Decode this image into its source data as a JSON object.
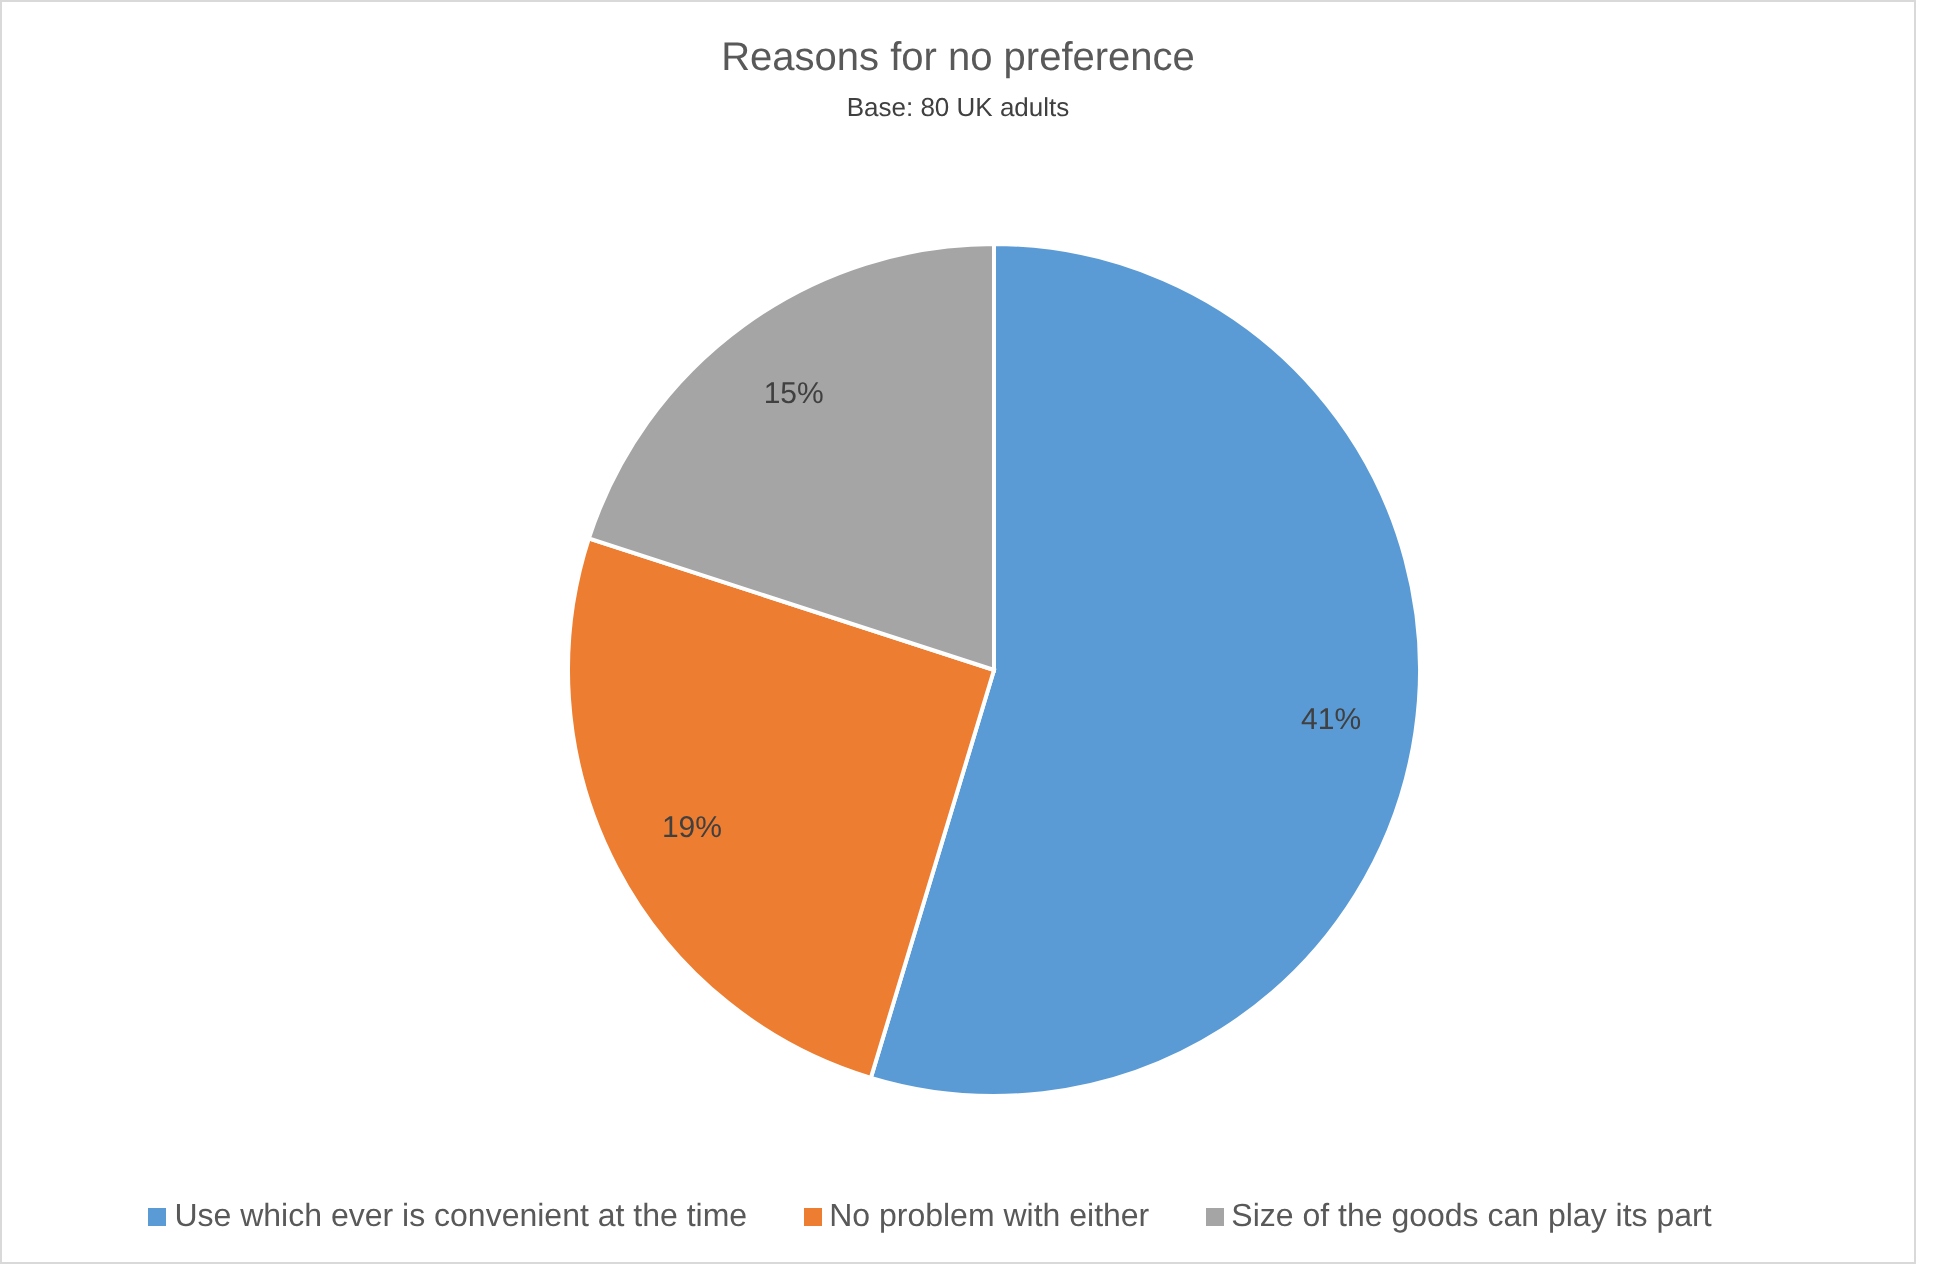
{
  "chart_data": {
    "type": "pie",
    "title": "Reasons for no preference",
    "subtitle": "Base: 80 UK adults",
    "categories": [
      "Use which ever is convenient at the time",
      "No problem with either",
      "Size of the goods can play its part"
    ],
    "values": [
      41,
      19,
      15
    ],
    "colors": [
      "#5b9bd5",
      "#ed7d31",
      "#a5a5a5"
    ],
    "value_labels": [
      "41%",
      "19%",
      "15%"
    ],
    "legend": "bottom"
  }
}
